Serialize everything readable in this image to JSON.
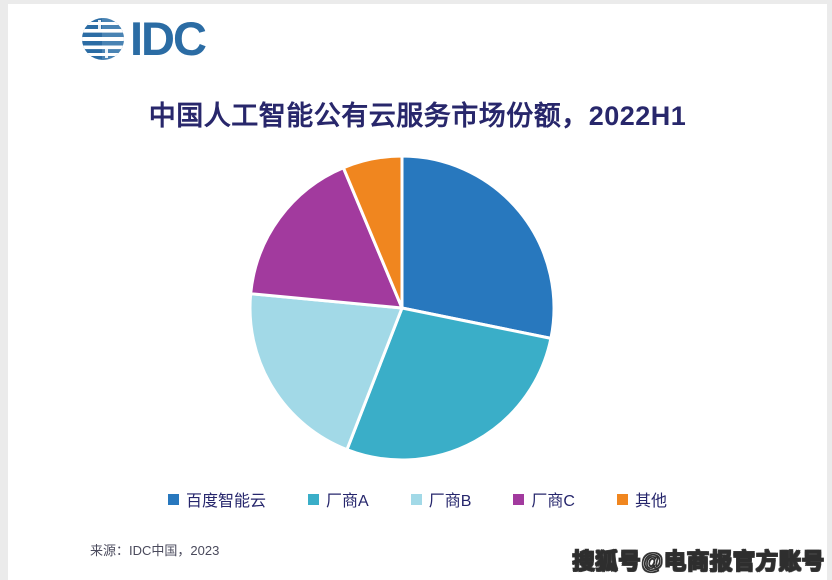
{
  "header": {
    "logo_text": "IDC"
  },
  "title": "中国人工智能公有云服务市场份额，2022H1",
  "chart_data": {
    "type": "pie",
    "title": "中国人工智能公有云服务市场份额，2022H1",
    "labels": [
      "百度智能云",
      "厂商A",
      "厂商B",
      "厂商C",
      "其他"
    ],
    "values": [
      28.2,
      27.7,
      20.6,
      17.2,
      6.3
    ],
    "values_note": "percent of market, estimated from slice angles (no numeric data labels shown in image)",
    "colors": [
      "#2878BE",
      "#3AAEC8",
      "#A2D9E7",
      "#A23A9E",
      "#F0861F"
    ],
    "start_angle_deg": 0,
    "direction": "clockwise",
    "slice_gap_color": "#ffffff",
    "legend_position": "bottom"
  },
  "footer": {
    "source": "来源：IDC中国，2023"
  },
  "watermark": "搜狐号@电商报官方账号",
  "theme": {
    "title_color": "#28276b",
    "legend_text_color": "#26266c",
    "logo_color": "#2b6ca4",
    "page_background": "#ebebeb",
    "card_background": "#ffffff"
  }
}
